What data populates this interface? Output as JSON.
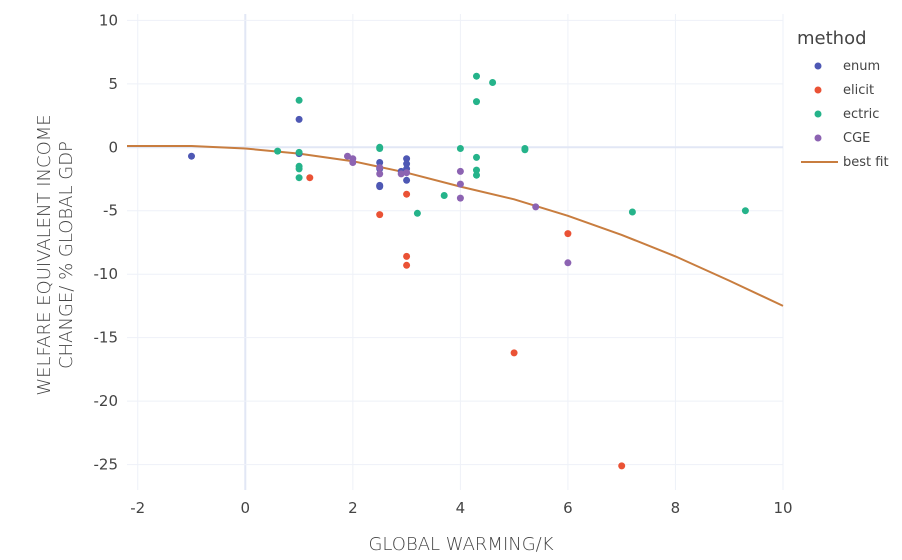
{
  "chart_data": {
    "type": "scatter",
    "xlabel": "GLOBAL WARMING/K",
    "ylabel_lines": [
      "WELFARE EQUIVALENT INCOME",
      "CHANGE/ % GLOBAL GDP"
    ],
    "xlim": [
      -2.2,
      10
    ],
    "ylim": [
      -27,
      10.5
    ],
    "x_ticks": [
      -2,
      0,
      2,
      4,
      6,
      8,
      10
    ],
    "y_ticks": [
      10,
      5,
      0,
      -5,
      -10,
      -15,
      -20,
      -25
    ],
    "grid": true,
    "legend_title": "method",
    "legend_position": "top-right",
    "series": [
      {
        "name": "enum",
        "color": "#4e58b4",
        "points": [
          [
            -1,
            -0.7
          ],
          [
            1,
            2.2
          ],
          [
            1,
            -0.5
          ],
          [
            2.5,
            -1.2
          ],
          [
            2.5,
            -1.7
          ],
          [
            2.5,
            -3.0
          ],
          [
            2.5,
            -3.1
          ],
          [
            2.9,
            -1.9
          ],
          [
            3,
            -0.9
          ],
          [
            3,
            -1.3
          ],
          [
            3,
            -1.7
          ],
          [
            3,
            -2.6
          ]
        ]
      },
      {
        "name": "elicit",
        "color": "#ea5235",
        "points": [
          [
            1.2,
            -2.4
          ],
          [
            2.5,
            -5.3
          ],
          [
            3,
            -3.7
          ],
          [
            3,
            -8.6
          ],
          [
            3,
            -9.3
          ],
          [
            5,
            -16.2
          ],
          [
            6,
            -6.8
          ],
          [
            7,
            -25.1
          ]
        ]
      },
      {
        "name": "ectric",
        "color": "#25b38a",
        "points": [
          [
            0.6,
            -0.3
          ],
          [
            1,
            3.7
          ],
          [
            1,
            -0.4
          ],
          [
            1,
            -1.5
          ],
          [
            1,
            -1.7
          ],
          [
            1,
            -2.4
          ],
          [
            2.5,
            0
          ],
          [
            2.5,
            -0.1
          ],
          [
            3.2,
            -5.2
          ],
          [
            3.7,
            -3.8
          ],
          [
            4,
            -0.1
          ],
          [
            4.3,
            5.6
          ],
          [
            4.3,
            3.6
          ],
          [
            4.3,
            -0.8
          ],
          [
            4.3,
            -1.8
          ],
          [
            4.3,
            -2.2
          ],
          [
            4.6,
            5.1
          ],
          [
            5.2,
            -0.1
          ],
          [
            5.2,
            -0.2
          ],
          [
            7.2,
            -5.1
          ],
          [
            9.3,
            -5.0
          ]
        ]
      },
      {
        "name": "CGE",
        "color": "#8c63b2",
        "points": [
          [
            1.9,
            -0.7
          ],
          [
            2,
            -0.9
          ],
          [
            2,
            -1.2
          ],
          [
            2.5,
            -1.6
          ],
          [
            2.5,
            -2.1
          ],
          [
            2.9,
            -2.1
          ],
          [
            3,
            -2.0
          ],
          [
            4,
            -1.9
          ],
          [
            4,
            -2.9
          ],
          [
            4,
            -4.0
          ],
          [
            5.4,
            -4.7
          ],
          [
            6,
            -9.1
          ]
        ]
      }
    ],
    "best_fit": {
      "name": "best fit",
      "color": "#c87d3f",
      "x": [
        -2.2,
        -1,
        0,
        1,
        2,
        3,
        4,
        5,
        6,
        7,
        8,
        9,
        10
      ],
      "y": [
        0.1,
        0.1,
        -0.1,
        -0.5,
        -1.1,
        -2.0,
        -3.1,
        -4.1,
        -5.4,
        -6.9,
        -8.6,
        -10.5,
        -12.5
      ]
    }
  }
}
